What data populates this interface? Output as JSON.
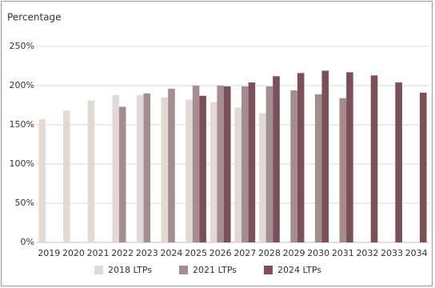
{
  "chart_data": {
    "type": "bar",
    "y_axis_title": "Percentage",
    "categories": [
      "2019",
      "2020",
      "2021",
      "2022",
      "2023",
      "2024",
      "2025",
      "2026",
      "2027",
      "2028",
      "2029",
      "2030",
      "2031",
      "2032",
      "2033",
      "2034"
    ],
    "series": [
      {
        "name": "2018 LTPs",
        "color": "#e2d9d7",
        "values": [
          157,
          168,
          181,
          188,
          188,
          185,
          182,
          179,
          172,
          165,
          null,
          null,
          null,
          null,
          null,
          null
        ]
      },
      {
        "name": "2021 LTPs",
        "color": "#a38d8e",
        "values": [
          null,
          null,
          null,
          173,
          190,
          196,
          200,
          200,
          199,
          199,
          194,
          189,
          184,
          null,
          null,
          null
        ]
      },
      {
        "name": "2024 LTPs",
        "color": "#7c5058",
        "values": [
          null,
          null,
          null,
          null,
          null,
          null,
          187,
          199,
          204,
          212,
          216,
          219,
          217,
          213,
          204,
          191
        ]
      }
    ],
    "ylim": [
      0,
      250
    ],
    "yticks": [
      {
        "value": 0,
        "label": "0%"
      },
      {
        "value": 50,
        "label": "50%"
      },
      {
        "value": 100,
        "label": "100%"
      },
      {
        "value": 150,
        "label": "150%"
      },
      {
        "value": 200,
        "label": "200%"
      },
      {
        "value": 250,
        "label": "250%"
      }
    ],
    "grid": true,
    "legend": "bottom"
  }
}
